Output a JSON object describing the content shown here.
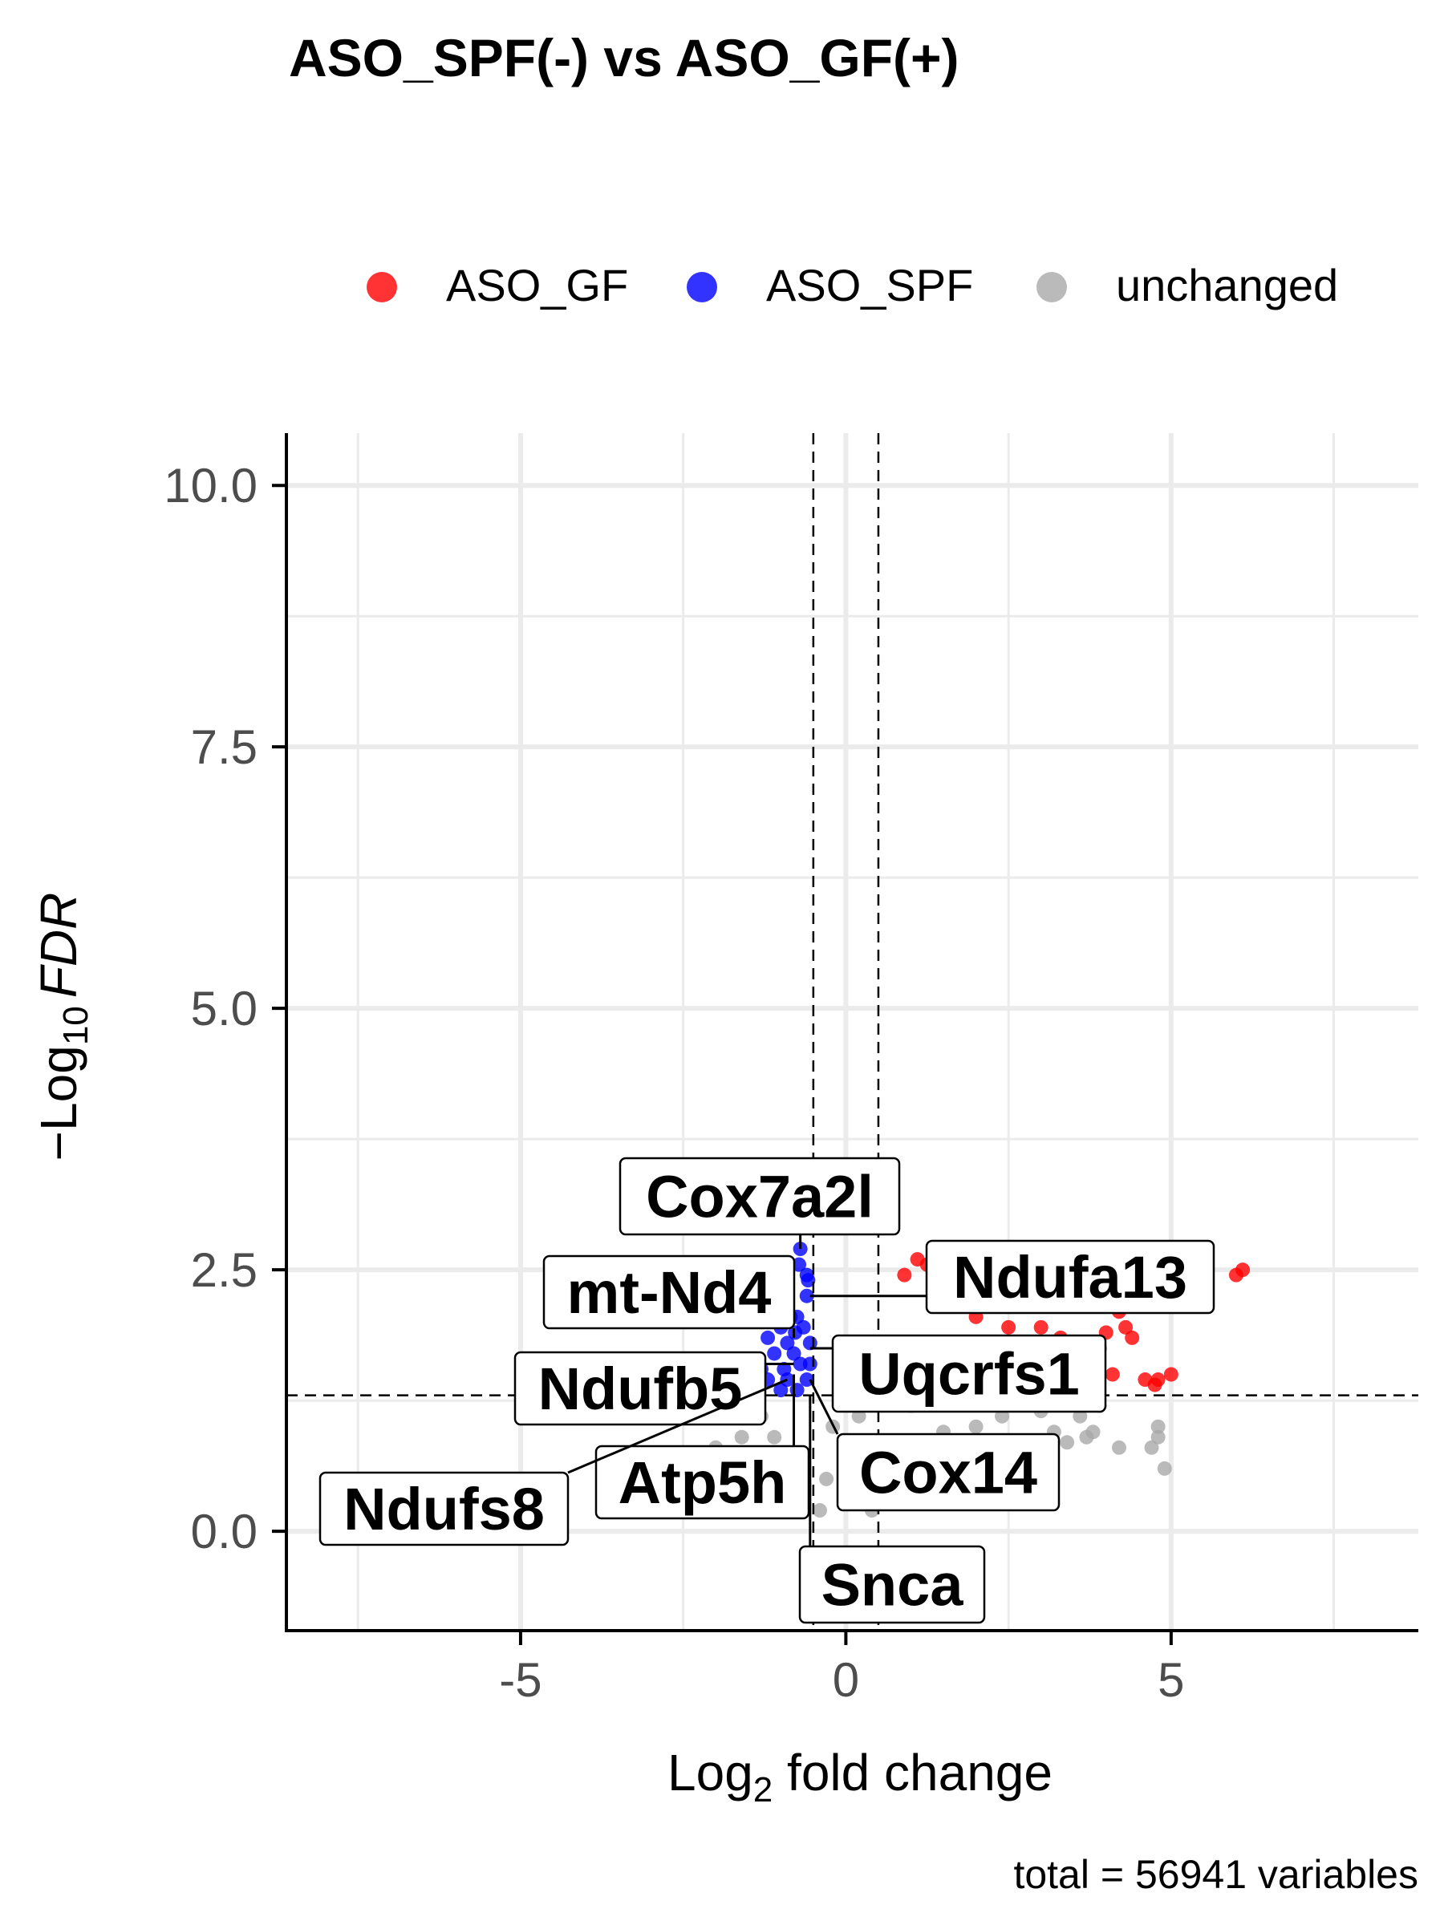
{
  "chart_data": {
    "type": "scatter",
    "title": "ASO_SPF(-) vs ASO_GF(+)",
    "xlabel": {
      "base": "Log",
      "sub": "2",
      "rest": " fold change"
    },
    "ylabel": {
      "prefix": "−Log",
      "sub": "10",
      "italic": "FDR"
    },
    "caption": "total = 56941 variables",
    "xlim": [
      -8.6,
      8.8
    ],
    "ylim": [
      -0.95,
      10.5
    ],
    "x_ticks": [
      {
        "v": -5,
        "label": "-5"
      },
      {
        "v": 0,
        "label": "0"
      },
      {
        "v": 5,
        "label": "5"
      }
    ],
    "y_ticks": [
      {
        "v": 0,
        "label": "0.0"
      },
      {
        "v": 2.5,
        "label": "2.5"
      },
      {
        "v": 5,
        "label": "5.0"
      },
      {
        "v": 7.5,
        "label": "7.5"
      },
      {
        "v": 10,
        "label": "10.0"
      }
    ],
    "x_minor": [
      -7.5,
      -2.5,
      2.5,
      7.5
    ],
    "y_minor": [
      1.25,
      3.75,
      6.25,
      8.75
    ],
    "grid": true,
    "thresholds": {
      "fc": [
        -0.5,
        0.5
      ],
      "fdr": 1.3
    },
    "legend_position": "top",
    "legend": [
      {
        "label": "ASO_GF",
        "color": "#ff0000"
      },
      {
        "label": "ASO_SPF",
        "color": "#0000ff"
      },
      {
        "label": "unchanged",
        "color": "#a9a9a9"
      }
    ],
    "series": [
      {
        "name": "ASO_GF",
        "color": "#ff0000",
        "points": [
          [
            0.9,
            2.45
          ],
          [
            1.1,
            2.6
          ],
          [
            1.25,
            2.55
          ],
          [
            2.0,
            2.05
          ],
          [
            2.4,
            2.2
          ],
          [
            2.5,
            1.95
          ],
          [
            2.7,
            2.2
          ],
          [
            3.0,
            1.95
          ],
          [
            3.3,
            1.85
          ],
          [
            3.5,
            1.6
          ],
          [
            3.9,
            1.75
          ],
          [
            4.0,
            1.9
          ],
          [
            4.2,
            2.1
          ],
          [
            4.3,
            1.95
          ],
          [
            4.4,
            1.85
          ],
          [
            4.1,
            1.5
          ],
          [
            4.6,
            1.45
          ],
          [
            4.75,
            1.4
          ],
          [
            4.8,
            1.45
          ],
          [
            5.0,
            1.5
          ],
          [
            6.0,
            2.45
          ],
          [
            6.1,
            2.5
          ],
          [
            3.6,
            1.45
          ],
          [
            3.0,
            1.7
          ],
          [
            2.6,
            1.6
          ],
          [
            2.2,
            1.75
          ],
          [
            1.6,
            1.65
          ]
        ]
      },
      {
        "name": "ASO_SPF",
        "color": "#0000ff",
        "points": [
          [
            -0.7,
            2.7
          ],
          [
            -0.72,
            2.55
          ],
          [
            -0.6,
            2.45
          ],
          [
            -0.58,
            2.4
          ],
          [
            -1.05,
            2.25
          ],
          [
            -0.6,
            2.25
          ],
          [
            -0.95,
            2.05
          ],
          [
            -0.85,
            2.05
          ],
          [
            -0.75,
            2.05
          ],
          [
            -1.2,
            1.85
          ],
          [
            -1.0,
            1.95
          ],
          [
            -0.9,
            1.8
          ],
          [
            -0.78,
            1.9
          ],
          [
            -0.65,
            1.95
          ],
          [
            -1.1,
            1.7
          ],
          [
            -0.8,
            1.7
          ],
          [
            -0.55,
            1.8
          ],
          [
            -1.3,
            1.55
          ],
          [
            -0.95,
            1.55
          ],
          [
            -0.7,
            1.6
          ],
          [
            -0.55,
            1.6
          ],
          [
            -1.5,
            1.45
          ],
          [
            -1.2,
            1.45
          ],
          [
            -0.9,
            1.45
          ],
          [
            -0.6,
            1.45
          ],
          [
            -1.7,
            1.38
          ],
          [
            -1.4,
            1.35
          ],
          [
            -1.0,
            1.35
          ],
          [
            -0.75,
            1.35
          ]
        ]
      },
      {
        "name": "unchanged",
        "color": "#a9a9a9",
        "points": [
          [
            -1.8,
            0.3
          ],
          [
            -1.5,
            0.35
          ],
          [
            -2.2,
            1.2
          ],
          [
            -1.9,
            1.1
          ],
          [
            -1.6,
            0.9
          ],
          [
            -2.0,
            0.8
          ],
          [
            -1.7,
            0.6
          ],
          [
            4.2,
            0.8
          ],
          [
            4.7,
            0.8
          ],
          [
            4.8,
            1.0
          ],
          [
            4.9,
            0.6
          ],
          [
            4.8,
            0.9
          ],
          [
            3.8,
            0.95
          ],
          [
            3.6,
            1.1
          ],
          [
            3.7,
            0.9
          ],
          [
            3.9,
            1.2
          ],
          [
            3.4,
            0.85
          ],
          [
            3.2,
            0.95
          ],
          [
            3.0,
            0.7
          ],
          [
            2.8,
            0.85
          ],
          [
            2.5,
            0.6
          ],
          [
            2.6,
            0.8
          ],
          [
            2.2,
            0.7
          ],
          [
            1.8,
            0.5
          ],
          [
            1.2,
            0.35
          ],
          [
            0.4,
            0.2
          ],
          [
            0.8,
            0.5
          ],
          [
            1.5,
            0.95
          ],
          [
            2.0,
            1.0
          ],
          [
            2.4,
            1.1
          ],
          [
            3.0,
            1.15
          ],
          [
            1.0,
            1.2
          ],
          [
            0.6,
            1.3
          ],
          [
            -0.3,
            0.5
          ],
          [
            -0.2,
            1.0
          ],
          [
            0.2,
            1.1
          ],
          [
            -0.4,
            0.2
          ],
          [
            -0.9,
            0.4
          ],
          [
            -1.1,
            0.9
          ],
          [
            -1.3,
            1.1
          ]
        ]
      }
    ],
    "labels": [
      {
        "text": "Cox7a2l",
        "point": [
          -0.7,
          2.7
        ]
      },
      {
        "text": "Ndufa13",
        "point": [
          -0.55,
          2.25
        ]
      },
      {
        "text": "mt-Nd4",
        "point": [
          -0.8,
          1.85
        ]
      },
      {
        "text": "Uqcrfs1",
        "point": [
          -0.55,
          1.75
        ]
      },
      {
        "text": "Ndufb5",
        "point": [
          -0.8,
          1.6
        ]
      },
      {
        "text": "Atp5h",
        "point": [
          -0.8,
          1.5
        ]
      },
      {
        "text": "Cox14",
        "point": [
          -0.55,
          1.45
        ]
      },
      {
        "text": "Ndufs8",
        "point": [
          -0.9,
          1.45
        ]
      },
      {
        "text": "Snca",
        "point": [
          -0.55,
          1.3
        ]
      }
    ]
  }
}
